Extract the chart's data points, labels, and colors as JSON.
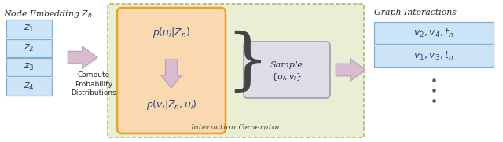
{
  "fig_width": 6.4,
  "fig_height": 1.81,
  "dpi": 100,
  "bg_color": "#ffffff",
  "node_title": "Node Embedding $Z_n$",
  "node_labels": [
    "$z_1$",
    "$z_2$",
    "$z_3$",
    "$z_4$"
  ],
  "node_box_fc": "#cce4f6",
  "node_box_ec": "#7bafd4",
  "arrow_fc": "#d8bcd0",
  "arrow_ec": "#c0a0b8",
  "green_bg_fc": "#e8efd4",
  "green_bg_ec": "#9aaf60",
  "orange_box_fc": "#fad9b0",
  "orange_box_ec": "#e8a020",
  "gray_box_fc": "#dddde8",
  "gray_box_ec": "#9090a8",
  "blue_box_fc": "#cce4f6",
  "blue_box_ec": "#7bafd4",
  "text_dark": "#2a2a2a",
  "text_blue": "#2a4080",
  "text_green": "#4a5a20",
  "prob1": "$p(u_i|Z_n)$",
  "prob2": "$p(v_i|Z_n, u_i)$",
  "sample_line1": "Sample",
  "sample_line2": "$\\{u_i, v_i\\}$",
  "compute_text": "Compute\nProbability\nDistributions",
  "interaction_gen_label": "Interaction Generator",
  "graph_interactions_title": "Graph Interactions",
  "interaction_rows": [
    "$v_2, v_4, t_n$",
    "$v_1, v_3, t_n$"
  ]
}
